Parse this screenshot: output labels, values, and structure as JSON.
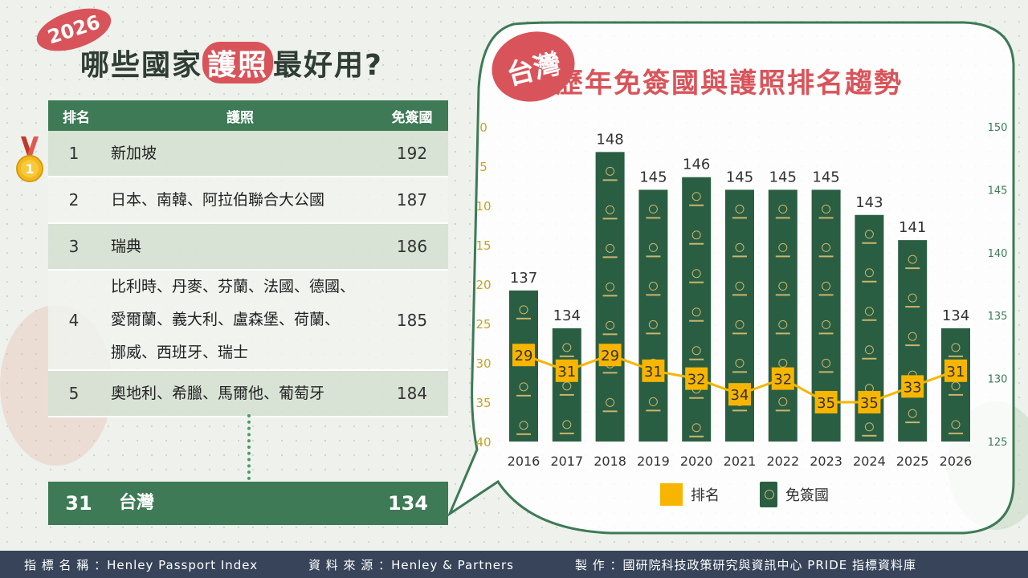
{
  "header": {
    "year_badge": "2026",
    "title_pre": "哪些國家",
    "title_hl": "護照",
    "title_post": "最好用?"
  },
  "table": {
    "col_rank": "排名",
    "col_passport": "護照",
    "col_visafree": "免簽國",
    "rows": [
      {
        "rank": "1",
        "lines": [
          "新加坡"
        ],
        "visafree": "192"
      },
      {
        "rank": "2",
        "lines": [
          "日本、南韓、阿拉伯聯合大公國"
        ],
        "visafree": "187"
      },
      {
        "rank": "3",
        "lines": [
          "瑞典"
        ],
        "visafree": "186"
      },
      {
        "rank": "4",
        "lines": [
          "比利時、丹麥、芬蘭、法國、德國、",
          "愛爾蘭、義大利、盧森堡、荷蘭、",
          "挪威、西班牙、瑞士"
        ],
        "visafree": "185"
      },
      {
        "rank": "5",
        "lines": [
          "奧地利、希臘、馬爾他、葡萄牙"
        ],
        "visafree": "184"
      }
    ],
    "taiwan": {
      "rank": "31",
      "name": "台灣",
      "visafree": "134"
    }
  },
  "panel": {
    "badge": "台灣",
    "title": "歷年免簽國與護照排名趨勢"
  },
  "chart_data": {
    "type": "bar",
    "categories": [
      "2016",
      "2017",
      "2018",
      "2019",
      "2020",
      "2021",
      "2022",
      "2023",
      "2024",
      "2025",
      "2026"
    ],
    "series": [
      {
        "name": "免簽國",
        "type": "bar",
        "axis": "right",
        "values": [
          137,
          134,
          148,
          145,
          146,
          145,
          145,
          145,
          143,
          141,
          134
        ]
      },
      {
        "name": "排名",
        "type": "line",
        "axis": "left",
        "values": [
          29,
          31,
          29,
          31,
          32,
          34,
          32,
          35,
          35,
          33,
          31
        ]
      }
    ],
    "left_axis": {
      "ticks": [
        0,
        5,
        10,
        15,
        20,
        25,
        30,
        35,
        40
      ],
      "range": [
        0,
        40
      ],
      "inverted": true
    },
    "right_axis": {
      "ticks": [
        125,
        130,
        135,
        140,
        145,
        150
      ],
      "range": [
        125,
        150
      ]
    },
    "legend": [
      {
        "label": "排名",
        "color": "#f7b500"
      },
      {
        "label": "免簽國",
        "color": "#2a5e43"
      }
    ],
    "colors": {
      "bar": "#2a5e43",
      "line": "#f7b500",
      "axis_left": "#c9a227",
      "axis_right": "#3d7a55"
    }
  },
  "footer": {
    "indicator": "指 標 名 稱 ：Henley Passport Index",
    "source": "資 料 來 源 ：Henley & Partners",
    "producer": "製 作 ：國研院科技政策研究與資訊中心 PRIDE 指標資料庫"
  }
}
